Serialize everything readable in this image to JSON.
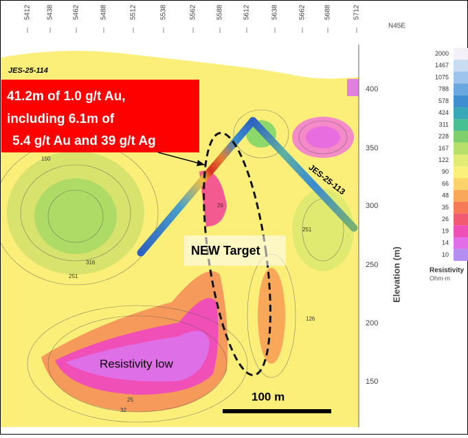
{
  "section": {
    "top_axis": {
      "labels": [
        "5412",
        "5438",
        "5462",
        "5488",
        "5512",
        "5538",
        "5562",
        "5588",
        "5612",
        "5638",
        "5662",
        "5688",
        "5712"
      ],
      "direction": "N45E"
    },
    "elevation_axis": {
      "title": "Elevation (m)",
      "labels": [
        "400",
        "350",
        "300",
        "250",
        "200",
        "150"
      ]
    },
    "legend": {
      "title": "Resistivity",
      "unit": "Ohm-m",
      "items": [
        {
          "label": "2000",
          "color": "#f4f0f8"
        },
        {
          "label": "1467",
          "color": "#c9dcf2"
        },
        {
          "label": "1075",
          "color": "#9dc4ec"
        },
        {
          "label": "788",
          "color": "#6aa6e0"
        },
        {
          "label": "578",
          "color": "#3f8fd0"
        },
        {
          "label": "424",
          "color": "#3aa7b8"
        },
        {
          "label": "311",
          "color": "#4bbf94"
        },
        {
          "label": "228",
          "color": "#7fd06a"
        },
        {
          "label": "167",
          "color": "#b6e06a"
        },
        {
          "label": "122",
          "color": "#e2ec74"
        },
        {
          "label": "90",
          "color": "#fbf07a"
        },
        {
          "label": "66",
          "color": "#fbd36a"
        },
        {
          "label": "48",
          "color": "#f9a85a"
        },
        {
          "label": "35",
          "color": "#f57a55"
        },
        {
          "label": "26",
          "color": "#f25a72"
        },
        {
          "label": "19",
          "color": "#ef50b8"
        },
        {
          "label": "14",
          "color": "#e16ee6"
        },
        {
          "label": "10",
          "color": "#b48ef0"
        }
      ]
    },
    "drillholes": [
      "JES-25-114",
      "JES-25-113"
    ],
    "callout": [
      "41.2m of 1.0 g/t Au,",
      "including 6.1m of",
      "5.4 g/t Au and 39 g/t Ag"
    ],
    "target_label": "NEW Target",
    "low_label": "Resistivity low",
    "scale_bar": "100 m",
    "contour_labels": [
      "150",
      "316",
      "251",
      "251",
      "126",
      "26",
      "25",
      "32"
    ]
  }
}
